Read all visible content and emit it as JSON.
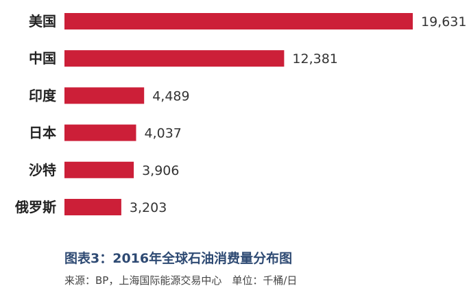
{
  "chart_data": {
    "type": "bar",
    "orientation": "horizontal",
    "categories": [
      "美国",
      "中国",
      "印度",
      "日本",
      "沙特",
      "俄罗斯"
    ],
    "values": [
      19631,
      12381,
      4489,
      4037,
      3906,
      3203
    ],
    "value_labels": [
      "19,631",
      "12,381",
      "4,489",
      "4,037",
      "3,906",
      "3,203"
    ],
    "title": "",
    "xlabel": "",
    "ylabel": "",
    "grid": false,
    "legend": "none"
  },
  "caption": {
    "title": "图表3：2016年全球石油消费量分布图",
    "source": "来源：BP，上海国际能源交易中心　单位：千桶/日"
  },
  "colors": {
    "bar": "#cc1f38",
    "category_text": "#222222",
    "value_text": "#333333",
    "caption_title": "#2e4a73",
    "caption_source": "#444444"
  }
}
